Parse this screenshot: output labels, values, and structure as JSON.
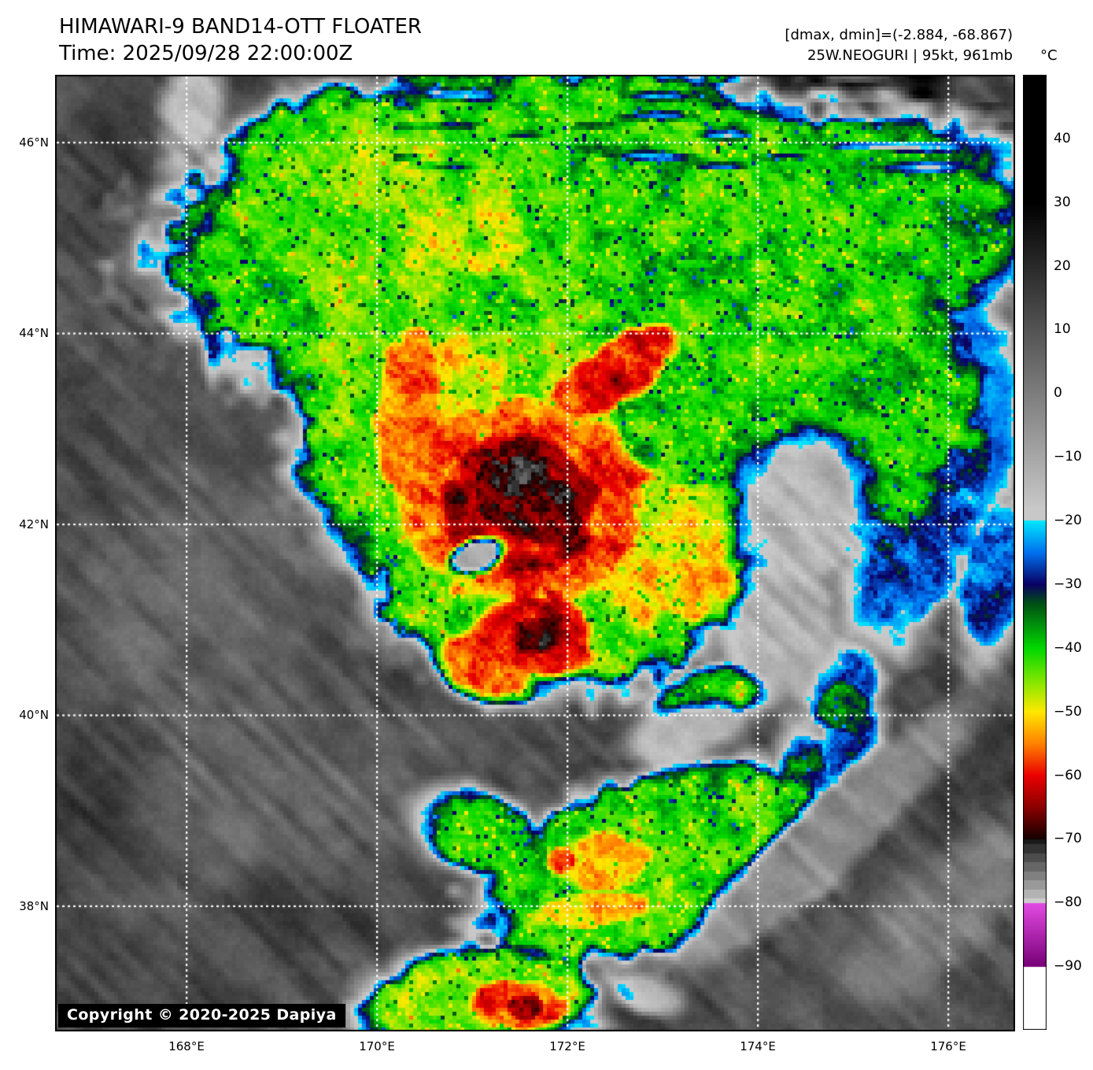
{
  "header": {
    "title": "HIMAWARI-9 BAND14-OTT FLOATER",
    "time": "Time: 2025/09/28 22:00:00Z"
  },
  "info": {
    "range": "[dmax, dmin]=(-2.884, -68.867)",
    "storm": "25W.NEOGURI | 95kt, 961mb"
  },
  "watermark": {
    "text": "Copyright © 2020-2025 Dapiya"
  },
  "axes": {
    "lat_ticks": [
      {
        "lat": 46,
        "label": "46°N"
      },
      {
        "lat": 44,
        "label": "44°N"
      },
      {
        "lat": 42,
        "label": "42°N"
      },
      {
        "lat": 40,
        "label": "40°N"
      },
      {
        "lat": 38,
        "label": "38°N"
      }
    ],
    "lon_ticks": [
      {
        "lon": 168,
        "label": "168°E"
      },
      {
        "lon": 170,
        "label": "170°E"
      },
      {
        "lon": 172,
        "label": "172°E"
      },
      {
        "lon": 174,
        "label": "174°E"
      },
      {
        "lon": 176,
        "label": "176°E"
      }
    ]
  },
  "colorbar": {
    "unit": "°C",
    "max": 50,
    "min": -100,
    "ticks": [
      {
        "value": 40,
        "label": "40"
      },
      {
        "value": 30,
        "label": "30"
      },
      {
        "value": 20,
        "label": "20"
      },
      {
        "value": 10,
        "label": "10"
      },
      {
        "value": 0,
        "label": "0"
      },
      {
        "value": -10,
        "label": "−10"
      },
      {
        "value": -20,
        "label": "−20"
      },
      {
        "value": -30,
        "label": "−30"
      },
      {
        "value": -40,
        "label": "−40"
      },
      {
        "value": -50,
        "label": "−50"
      },
      {
        "value": -60,
        "label": "−60"
      },
      {
        "value": -70,
        "label": "−70"
      },
      {
        "value": -80,
        "label": "−80"
      },
      {
        "value": -90,
        "label": "−90"
      }
    ],
    "palette": [
      {
        "t": 50,
        "c": "#000000"
      },
      {
        "t": 30,
        "c": "#000000"
      },
      {
        "t": -18,
        "c": "#c8c8c8"
      },
      {
        "t": -19.9,
        "c": "#c8c8c8"
      },
      {
        "t": -20,
        "c": "#00e8ff"
      },
      {
        "t": -25,
        "c": "#0070ee"
      },
      {
        "t": -30,
        "c": "#0a0064"
      },
      {
        "t": -33,
        "c": "#005014"
      },
      {
        "t": -40,
        "c": "#00d800"
      },
      {
        "t": -46,
        "c": "#96e800"
      },
      {
        "t": -50,
        "c": "#ffe800"
      },
      {
        "t": -55,
        "c": "#ff8200"
      },
      {
        "t": -60,
        "c": "#eb0000"
      },
      {
        "t": -65,
        "c": "#8c0000"
      },
      {
        "t": -70,
        "c": "#140000"
      },
      {
        "t": -70.1,
        "c": "#1a1a1a",
        "steps": 7
      },
      {
        "t": -80,
        "c": "#cccccc"
      },
      {
        "t": -80.1,
        "c": "#e24ae2"
      },
      {
        "t": -90,
        "c": "#780078"
      },
      {
        "t": -90.1,
        "c": "#ffffff"
      },
      {
        "t": -100,
        "c": "#ffffff"
      }
    ]
  }
}
